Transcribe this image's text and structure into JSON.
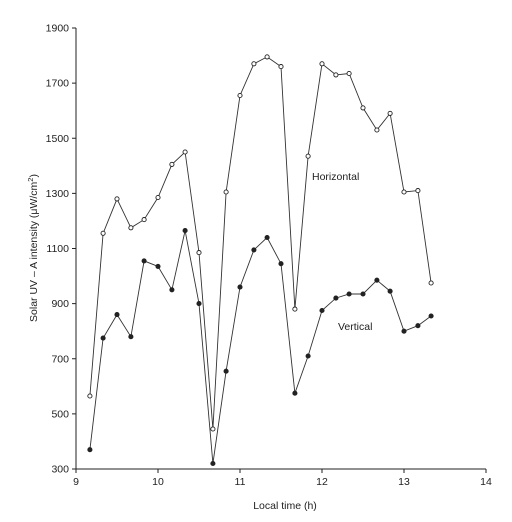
{
  "chart_data": {
    "type": "line",
    "xlabel": "Local time (h)",
    "ylabel_parts": [
      "Solar UV – A intensity (μW/cm",
      "2",
      ")"
    ],
    "xlim": [
      9,
      14
    ],
    "ylim": [
      300,
      1900
    ],
    "xticks": [
      9,
      10,
      11,
      12,
      13,
      14
    ],
    "yticks": [
      300,
      500,
      700,
      900,
      1100,
      1300,
      1500,
      1700,
      1900
    ],
    "grid": false,
    "series": [
      {
        "name": "Horizontal",
        "marker": "open-circle",
        "x": [
          9.17,
          9.33,
          9.5,
          9.67,
          9.83,
          10.0,
          10.17,
          10.33,
          10.5,
          10.67,
          10.83,
          11.0,
          11.17,
          11.33,
          11.5,
          11.67,
          11.83,
          12.0,
          12.17,
          12.33,
          12.5,
          12.67,
          12.83,
          13.0,
          13.17,
          13.33
        ],
        "y": [
          565,
          1155,
          1280,
          1175,
          1205,
          1285,
          1405,
          1450,
          1085,
          445,
          1305,
          1655,
          1770,
          1795,
          1760,
          880,
          1435,
          1770,
          1730,
          1735,
          1610,
          1530,
          1590,
          1305,
          1310,
          975
        ]
      },
      {
        "name": "Vertical",
        "marker": "filled-circle",
        "x": [
          9.17,
          9.33,
          9.5,
          9.67,
          9.83,
          10.0,
          10.17,
          10.33,
          10.5,
          10.67,
          10.83,
          11.0,
          11.17,
          11.33,
          11.5,
          11.67,
          11.83,
          12.0,
          12.17,
          12.33,
          12.5,
          12.67,
          12.83,
          13.0,
          13.17,
          13.33
        ],
        "y": [
          370,
          775,
          860,
          780,
          1055,
          1035,
          950,
          1165,
          900,
          320,
          655,
          960,
          1095,
          1140,
          1045,
          575,
          710,
          875,
          920,
          935,
          935,
          985,
          945,
          800,
          820,
          855
        ]
      }
    ]
  }
}
